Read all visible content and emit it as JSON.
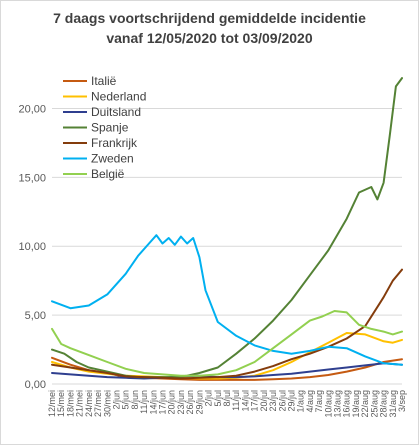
{
  "chart_data": {
    "type": "line",
    "title_line1": "7 daags voortschrijdend gemiddelde incidentie",
    "title_line2": "vanaf 12/05/2020 tot 03/09/2020",
    "xlabel": "",
    "ylabel": "",
    "ylim": [
      0,
      22.5
    ],
    "y_ticks": [
      "0,00",
      "5,00",
      "10,00",
      "15,00",
      "20,00"
    ],
    "y_tick_values": [
      0,
      5,
      10,
      15,
      20
    ],
    "x_range": [
      0,
      114
    ],
    "x_tick_labels": [
      "12/mei",
      "15/mei",
      "18/mei",
      "21/mei",
      "24/mei",
      "27/mei",
      "30/mei",
      "2/jun",
      "5/jun",
      "8/jun",
      "11/jun",
      "14/jun",
      "17/jun",
      "20/jun",
      "23/jun",
      "26/jun",
      "29/jun",
      "2/jul",
      "5/jul",
      "8/jul",
      "11/jul",
      "14/jul",
      "17/jul",
      "20/jul",
      "23/jul",
      "26/jul",
      "29/jul",
      "1/aug",
      "4/aug",
      "7/aug",
      "10/aug",
      "13/aug",
      "16/aug",
      "19/aug",
      "22/aug",
      "25/aug",
      "28/aug",
      "31/aug",
      "3/sep"
    ],
    "x_tick_days": [
      0,
      3,
      6,
      9,
      12,
      15,
      18,
      21,
      24,
      27,
      30,
      33,
      36,
      39,
      42,
      45,
      48,
      51,
      54,
      57,
      60,
      63,
      66,
      69,
      72,
      75,
      78,
      81,
      84,
      87,
      90,
      93,
      96,
      99,
      102,
      105,
      108,
      111,
      114
    ],
    "grid": "horizontal",
    "legend_position": "top-left",
    "series": [
      {
        "name": "Italië",
        "color": "#c55a11",
        "x": [
          0,
          6,
          12,
          18,
          24,
          30,
          36,
          42,
          48,
          54,
          60,
          66,
          72,
          78,
          84,
          90,
          96,
          102,
          108,
          114
        ],
        "values": [
          1.9,
          1.4,
          1.0,
          0.8,
          0.5,
          0.45,
          0.4,
          0.35,
          0.3,
          0.3,
          0.3,
          0.3,
          0.35,
          0.4,
          0.5,
          0.65,
          0.9,
          1.2,
          1.6,
          1.8
        ]
      },
      {
        "name": "Nederland",
        "color": "#ffc000",
        "x": [
          0,
          6,
          12,
          18,
          24,
          30,
          36,
          42,
          48,
          54,
          60,
          66,
          72,
          78,
          84,
          90,
          96,
          102,
          108,
          111,
          114
        ],
        "values": [
          1.6,
          1.2,
          0.9,
          0.75,
          0.6,
          0.55,
          0.5,
          0.45,
          0.4,
          0.4,
          0.45,
          0.6,
          1.0,
          1.6,
          2.3,
          3.0,
          3.7,
          3.6,
          3.1,
          3.0,
          3.2
        ]
      },
      {
        "name": "Duitsland",
        "color": "#2f3f8f",
        "x": [
          0,
          6,
          12,
          18,
          24,
          30,
          36,
          42,
          48,
          54,
          60,
          66,
          72,
          78,
          84,
          90,
          96,
          102,
          108,
          114
        ],
        "values": [
          0.8,
          0.7,
          0.6,
          0.5,
          0.45,
          0.4,
          0.45,
          0.55,
          0.6,
          0.5,
          0.5,
          0.55,
          0.65,
          0.75,
          0.9,
          1.05,
          1.2,
          1.35,
          1.5,
          1.4
        ]
      },
      {
        "name": "Spanje",
        "color": "#548235",
        "x": [
          0,
          4,
          8,
          12,
          16,
          20,
          24,
          28,
          32,
          36,
          40,
          44,
          48,
          54,
          60,
          66,
          72,
          78,
          84,
          90,
          96,
          100,
          104,
          106,
          108,
          110,
          112,
          114
        ],
        "values": [
          2.5,
          2.2,
          1.6,
          1.2,
          1.0,
          0.8,
          0.6,
          0.5,
          0.5,
          0.5,
          0.5,
          0.6,
          0.8,
          1.2,
          2.2,
          3.3,
          4.6,
          6.1,
          7.9,
          9.7,
          12.0,
          13.9,
          14.3,
          13.4,
          14.6,
          18.0,
          21.6,
          22.2
        ]
      },
      {
        "name": "Frankrijk",
        "color": "#843c0c",
        "x": [
          0,
          6,
          12,
          18,
          24,
          30,
          36,
          42,
          48,
          54,
          60,
          66,
          72,
          78,
          84,
          90,
          96,
          102,
          108,
          111,
          114
        ],
        "values": [
          1.4,
          1.2,
          1.0,
          0.8,
          0.55,
          0.5,
          0.45,
          0.4,
          0.45,
          0.5,
          0.6,
          0.9,
          1.3,
          1.8,
          2.2,
          2.7,
          3.3,
          4.2,
          6.3,
          7.5,
          8.3
        ]
      },
      {
        "name": "Zweden",
        "color": "#00b0f0",
        "x": [
          0,
          6,
          12,
          18,
          24,
          28,
          32,
          34,
          36,
          38,
          40,
          42,
          44,
          46,
          48,
          50,
          54,
          60,
          66,
          72,
          78,
          84,
          90,
          96,
          102,
          108,
          114
        ],
        "values": [
          6.0,
          5.5,
          5.7,
          6.5,
          8.0,
          9.3,
          10.3,
          10.8,
          10.2,
          10.6,
          10.1,
          10.7,
          10.2,
          10.6,
          9.2,
          6.8,
          4.5,
          3.5,
          2.8,
          2.4,
          2.2,
          2.4,
          2.7,
          2.6,
          2.0,
          1.5,
          1.4
        ]
      },
      {
        "name": "België",
        "color": "#92d050",
        "x": [
          0,
          3,
          6,
          12,
          18,
          24,
          30,
          36,
          42,
          48,
          54,
          60,
          66,
          72,
          78,
          84,
          88,
          92,
          96,
          100,
          104,
          108,
          111,
          114
        ],
        "values": [
          4.0,
          2.9,
          2.6,
          2.1,
          1.6,
          1.1,
          0.8,
          0.7,
          0.6,
          0.6,
          0.7,
          1.0,
          1.6,
          2.6,
          3.6,
          4.6,
          4.9,
          5.3,
          5.2,
          4.3,
          4.0,
          3.8,
          3.6,
          3.8
        ]
      }
    ]
  }
}
